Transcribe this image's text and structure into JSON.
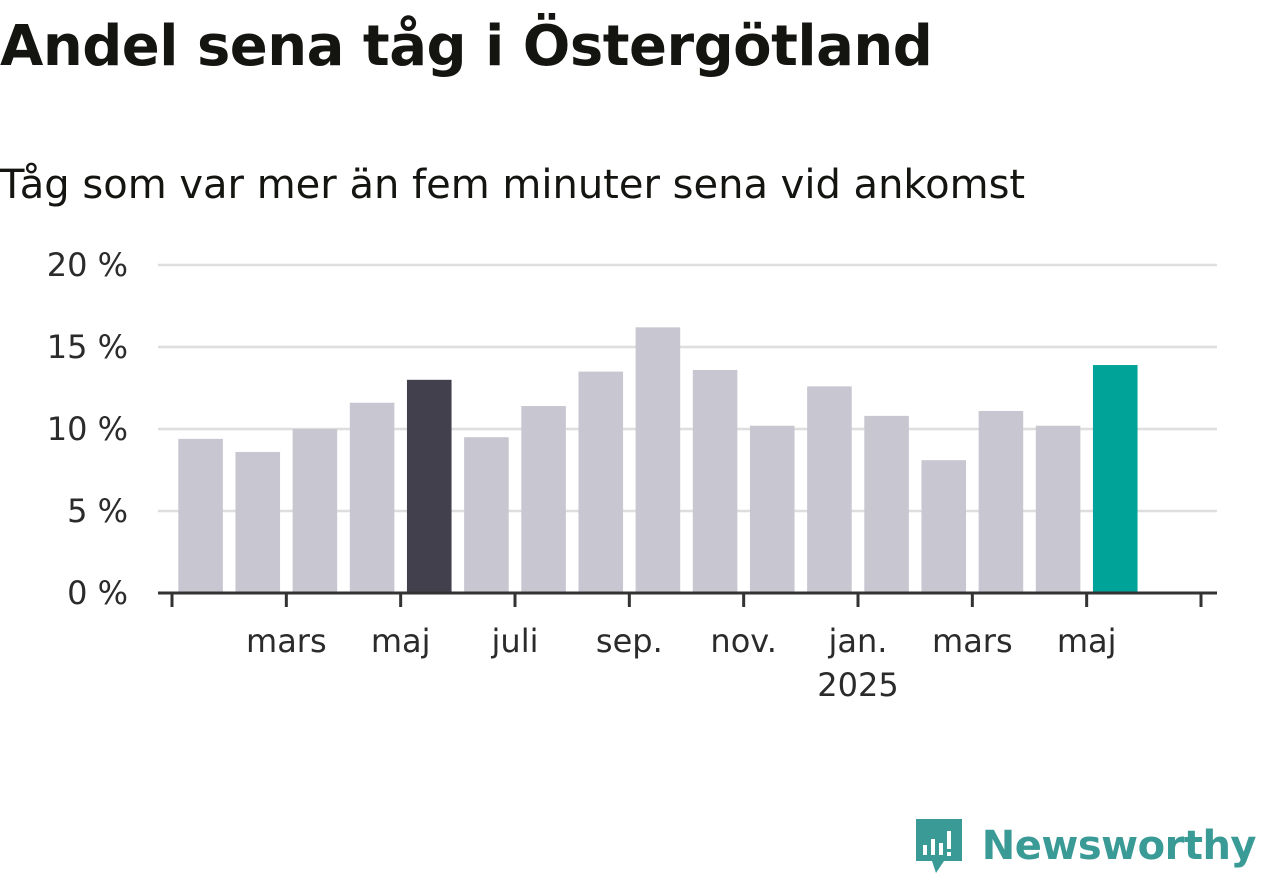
{
  "title": "Andel sena tåg i Östergötland",
  "subtitle": "Tåg som var mer än fem minuter sena vid ankomst",
  "brand": {
    "name": "Newsworthy",
    "color": "#3a9a96",
    "icon": "newsworthy-logo-icon"
  },
  "colors": {
    "bar": "#c8c7d1",
    "highlight_dark": "#42404d",
    "highlight_accent": "#00a398",
    "grid": "#dedede",
    "axis": "#333333"
  },
  "chart_data": {
    "type": "bar",
    "title": "Andel sena tåg i Östergötland",
    "subtitle": "Tåg som var mer än fem minuter sena vid ankomst",
    "xlabel": "",
    "ylabel": "",
    "ylim": [
      0,
      20
    ],
    "yticks": [
      0,
      5,
      10,
      15,
      20
    ],
    "ytick_labels": [
      "0 %",
      "5 %",
      "10 %",
      "15 %",
      "20 %"
    ],
    "grid": true,
    "categories": [
      "2024-01",
      "2024-02",
      "2024-03",
      "2024-04",
      "2024-05",
      "2024-06",
      "2024-07",
      "2024-08",
      "2024-09",
      "2024-10",
      "2024-11",
      "2024-12",
      "2025-01",
      "2025-02",
      "2025-03",
      "2025-04",
      "2025-05",
      "2025-06"
    ],
    "values": [
      9.4,
      8.6,
      10.0,
      11.6,
      13.0,
      9.5,
      11.4,
      13.5,
      16.2,
      13.6,
      10.2,
      12.6,
      10.8,
      8.1,
      11.1,
      10.2,
      13.9,
      null
    ],
    "highlight": {
      "2024-05": "highlight_dark",
      "2025-05": "highlight_accent"
    },
    "xtick_labels": [
      {
        "category": "2024-03",
        "label": "mars",
        "sub": ""
      },
      {
        "category": "2024-05",
        "label": "maj",
        "sub": ""
      },
      {
        "category": "2024-07",
        "label": "juli",
        "sub": ""
      },
      {
        "category": "2024-09",
        "label": "sep.",
        "sub": ""
      },
      {
        "category": "2024-11",
        "label": "nov.",
        "sub": ""
      },
      {
        "category": "2025-01",
        "label": "jan.",
        "sub": "2025"
      },
      {
        "category": "2025-03",
        "label": "mars",
        "sub": ""
      },
      {
        "category": "2025-05",
        "label": "maj",
        "sub": ""
      }
    ]
  }
}
